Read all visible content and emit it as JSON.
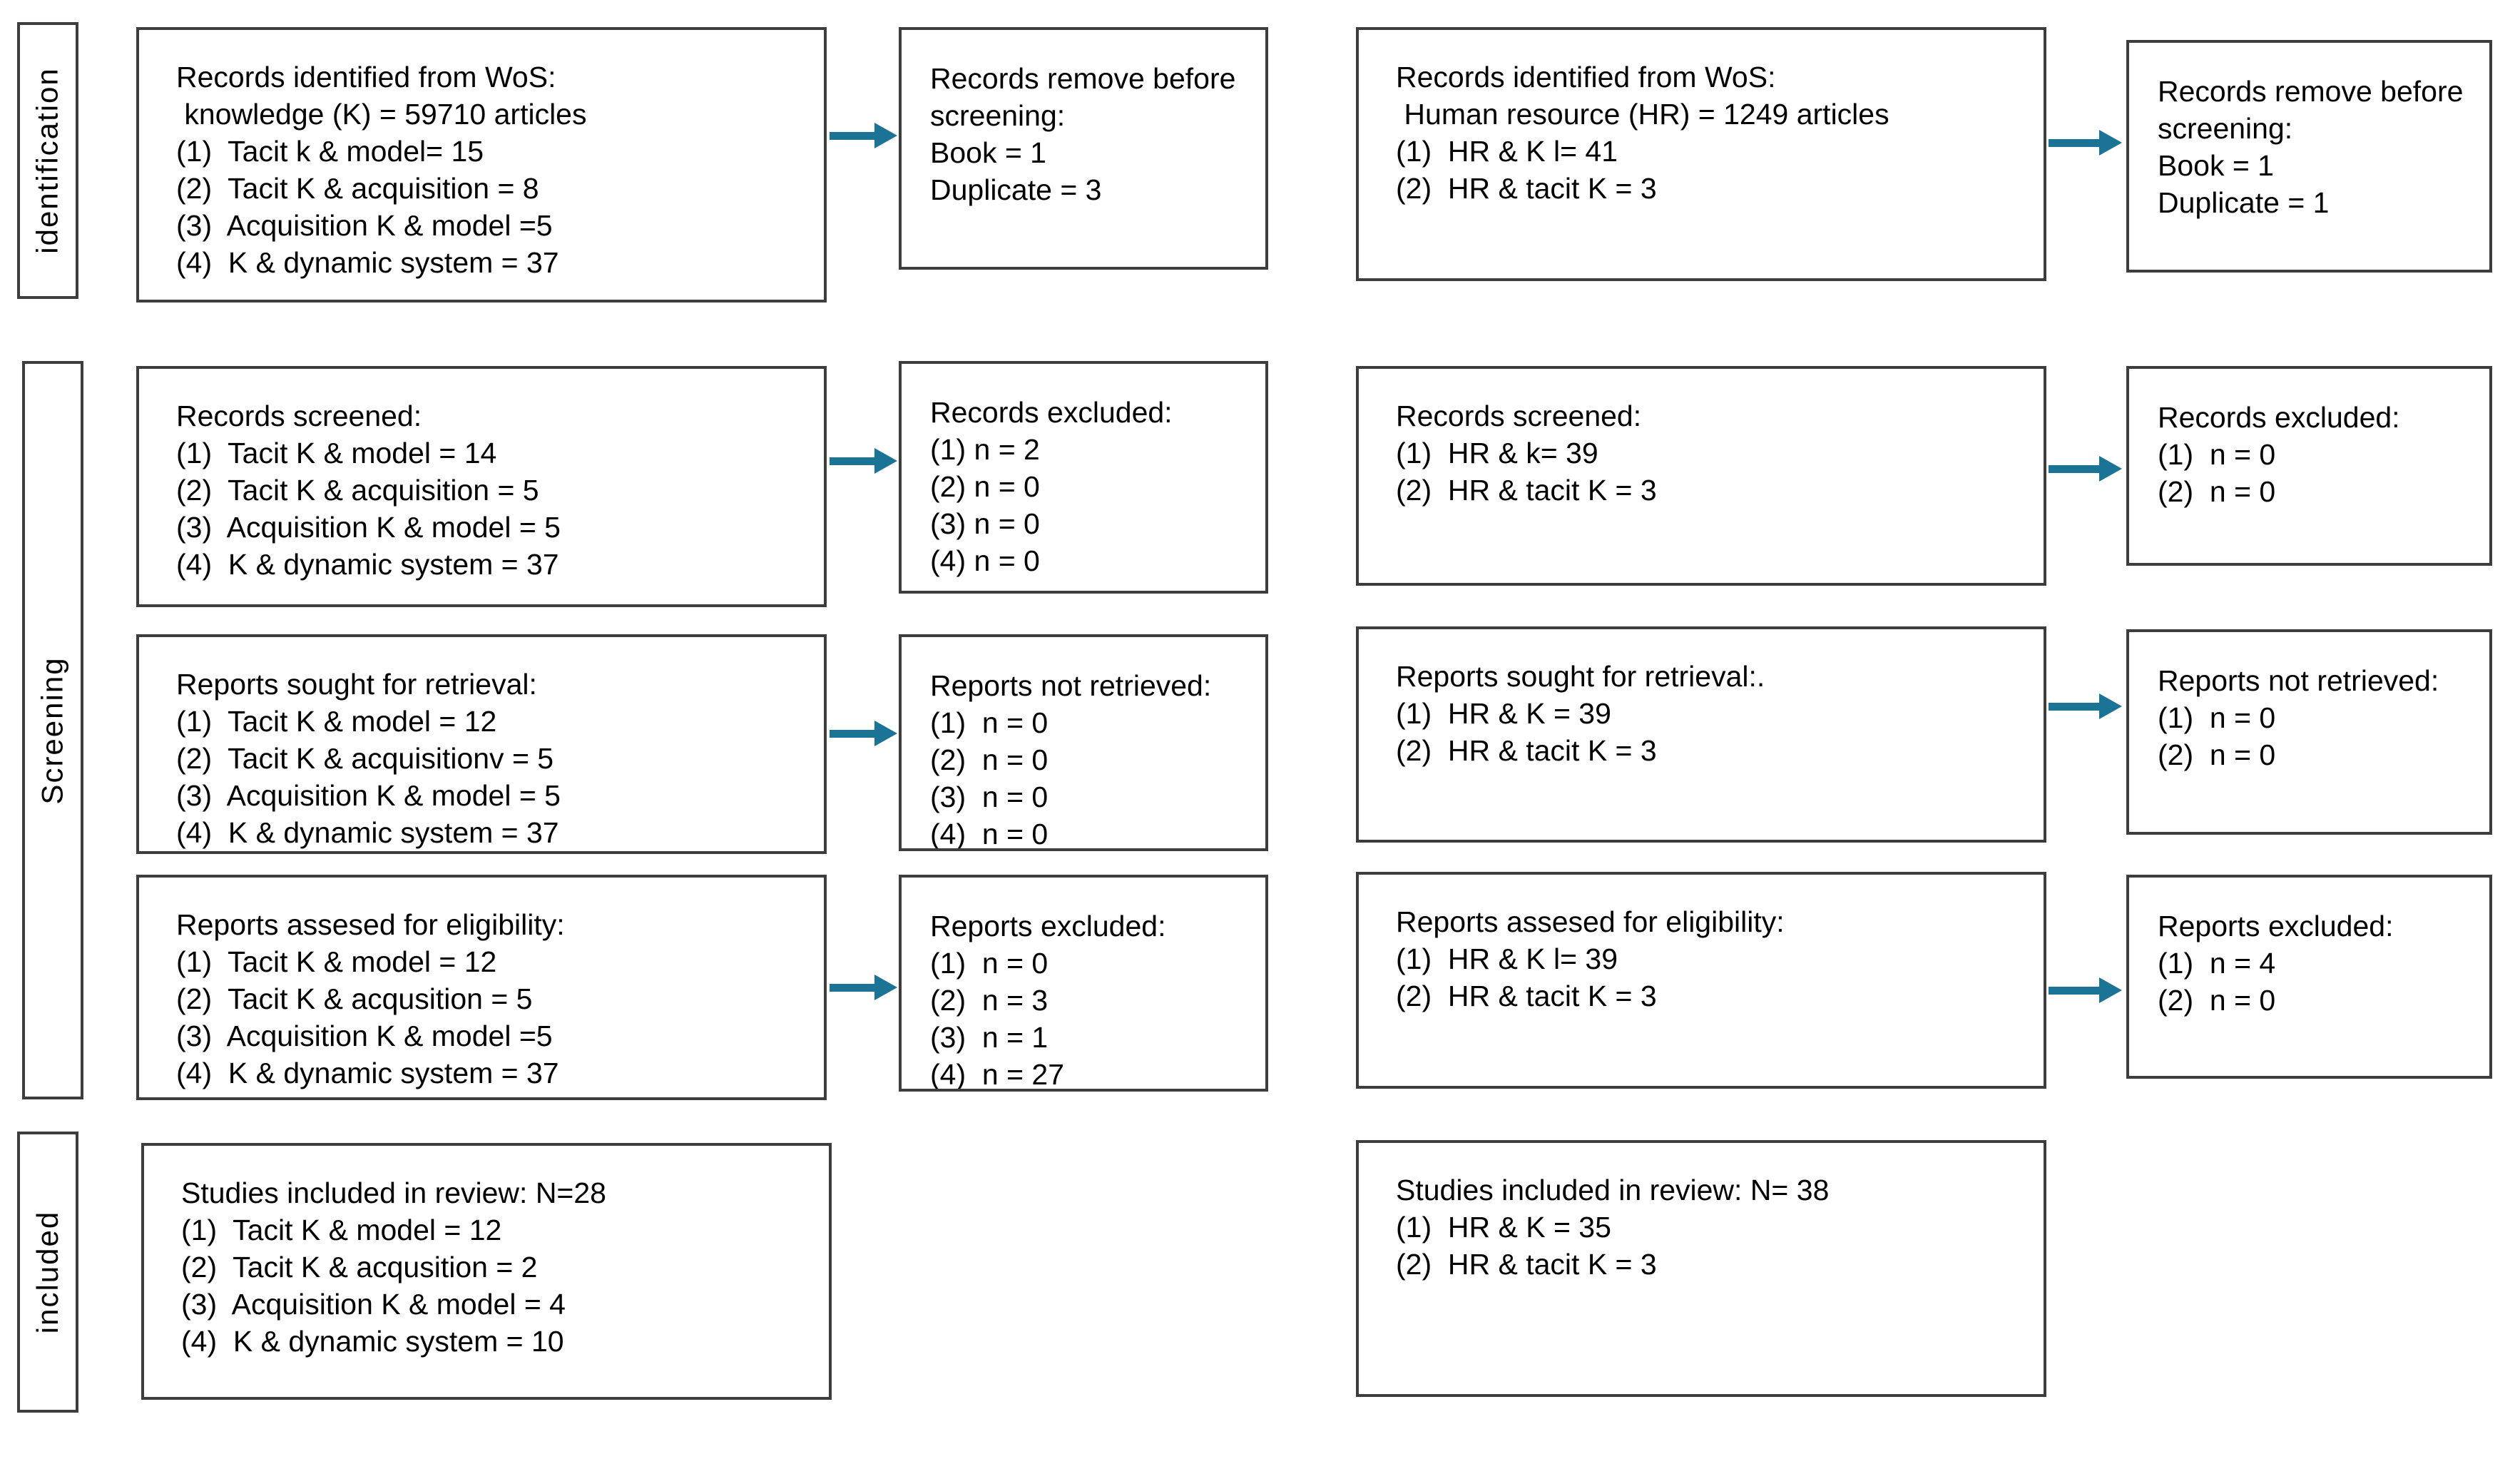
{
  "palette": {
    "arrow_color": "#1B7396",
    "box_border_color": "#3D3D3D",
    "text_color": "#000000",
    "background_color": "#FFFFFF"
  },
  "side_labels": [
    {
      "label": "identification"
    },
    {
      "label": "Screening"
    },
    {
      "label": "included"
    }
  ],
  "boxes": {
    "k_identified": {
      "lines": [
        "Records identified from WoS:",
        " knowledge (K) = 59710 articles",
        "(1)  Tacit k & model= 15",
        "(2)  Tacit K & acquisition = 8",
        "(3)  Acquisition K & model =5",
        "(4)  K & dynamic system = 37"
      ]
    },
    "k_removed": {
      "lines": [
        "Records remove before screening:",
        "Book = 1",
        "Duplicate = 3"
      ]
    },
    "hr_identified": {
      "lines": [
        "Records identified from WoS:",
        " Human resource (HR) = 1249 articles",
        "(1)  HR & K l= 41",
        "(2)  HR & tacit K = 3"
      ]
    },
    "hr_removed": {
      "lines": [
        "Records remove before screening:",
        "Book = 1",
        "Duplicate = 1"
      ]
    },
    "k_screened": {
      "lines": [
        "Records screened:",
        "(1)  Tacit K & model = 14",
        "(2)  Tacit K & acquisition = 5",
        "(3)  Acquisition K & model = 5",
        "(4)  K & dynamic system = 37"
      ]
    },
    "k_records_excluded": {
      "lines": [
        "Records excluded:",
        "(1) n = 2",
        "(2) n = 0",
        "(3) n = 0",
        "(4) n = 0"
      ]
    },
    "hr_screened": {
      "lines": [
        "Records screened:",
        "(1)  HR & k= 39",
        "(2)  HR & tacit K = 3"
      ]
    },
    "hr_records_excluded": {
      "lines": [
        "Records excluded:",
        "(1)  n = 0",
        "(2)  n = 0"
      ]
    },
    "k_retrieval": {
      "lines": [
        "Reports sought for retrieval:",
        "(1)  Tacit K & model = 12",
        "(2)  Tacit K & acquisitionv = 5",
        "(3)  Acquisition K & model = 5",
        "(4)  K & dynamic system = 37"
      ]
    },
    "k_not_retrieved": {
      "lines": [
        "Reports not retrieved:",
        "(1)  n = 0",
        "(2)  n = 0",
        "(3)  n = 0",
        "(4)  n = 0"
      ]
    },
    "hr_retrieval": {
      "lines": [
        "Reports sought for retrieval:.",
        "(1)  HR & K = 39",
        "(2)  HR & tacit K = 3"
      ]
    },
    "hr_not_retrieved": {
      "lines": [
        "Reports not retrieved:",
        "(1)  n = 0",
        "(2)  n = 0"
      ]
    },
    "k_eligibility": {
      "lines": [
        "Reports assesed for eligibility:",
        "(1)  Tacit K & model = 12",
        "(2)  Tacit K & acqusition = 5",
        "(3)  Acquisition K & model =5",
        "(4)  K & dynamic system = 37"
      ]
    },
    "k_reports_excluded": {
      "lines": [
        "Reports excluded:",
        "(1)  n = 0",
        "(2)  n = 3",
        "(3)  n = 1",
        "(4)  n = 27"
      ]
    },
    "hr_eligibility": {
      "lines": [
        "Reports assesed for eligibility:",
        "(1)  HR & K l= 39",
        "(2)  HR & tacit K = 3"
      ]
    },
    "hr_reports_excluded": {
      "lines": [
        "Reports excluded:",
        "(1)  n = 4",
        "(2)  n = 0"
      ]
    },
    "k_included": {
      "lines": [
        "Studies included in review: N=28",
        "(1)  Tacit K & model = 12",
        "(2)  Tacit K & acqusition = 2",
        "(3)  Acquisition K & model = 4",
        "(4)  K & dynamic system = 10"
      ]
    },
    "hr_included": {
      "lines": [
        "Studies included in review: N= 38",
        "(1)  HR & K = 35",
        "(2)  HR & tacit K = 3"
      ]
    }
  },
  "connections": [
    {
      "from": "k_identified",
      "to": "k_removed"
    },
    {
      "from": "hr_identified",
      "to": "hr_removed"
    },
    {
      "from": "k_screened",
      "to": "k_records_excluded"
    },
    {
      "from": "hr_screened",
      "to": "hr_records_excluded"
    },
    {
      "from": "k_retrieval",
      "to": "k_not_retrieved"
    },
    {
      "from": "hr_retrieval",
      "to": "hr_not_retrieved"
    },
    {
      "from": "k_eligibility",
      "to": "k_reports_excluded"
    },
    {
      "from": "hr_eligibility",
      "to": "hr_reports_excluded"
    }
  ]
}
